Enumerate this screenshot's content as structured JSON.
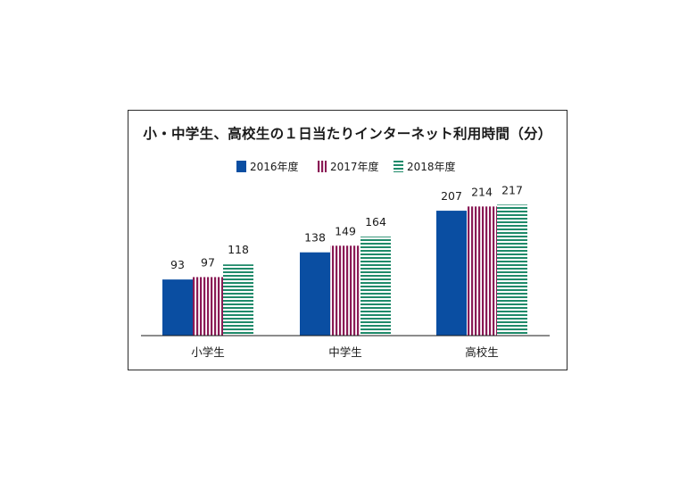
{
  "chart_data": {
    "type": "bar",
    "title": "小・中学生、高校生の１日当たりインターネット利用時間（分）",
    "categories": [
      "小学生",
      "中学生",
      "高校生"
    ],
    "series": [
      {
        "name": "2016年度",
        "values": [
          93,
          138,
          207
        ],
        "color": "#0a4ea2",
        "pattern": "solid"
      },
      {
        "name": "2017年度",
        "values": [
          97,
          149,
          214
        ],
        "color": "#8a1a55",
        "pattern": "vertical-stripes"
      },
      {
        "name": "2018年度",
        "values": [
          118,
          164,
          217
        ],
        "color": "#1f8a6a",
        "pattern": "horizontal-stripes"
      }
    ],
    "ylim": [
      0,
      230
    ],
    "legend_position": "top-center",
    "grid": false,
    "data_labels": true
  }
}
